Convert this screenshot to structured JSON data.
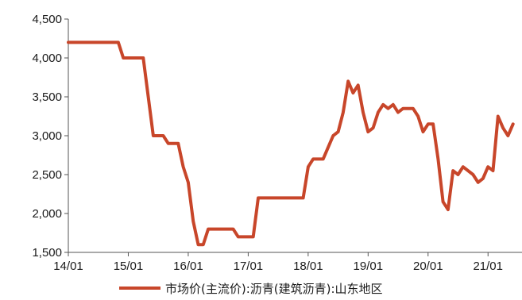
{
  "chart_data": {
    "type": "line",
    "title": "",
    "xlabel": "",
    "ylabel": "",
    "ylim": [
      1500,
      4500
    ],
    "y_ticks": [
      "1,500",
      "2,000",
      "2,500",
      "3,000",
      "3,500",
      "4,000",
      "4,500"
    ],
    "x_ticks": [
      "14/01",
      "15/01",
      "16/01",
      "17/01",
      "18/01",
      "19/01",
      "20/01",
      "21/01"
    ],
    "grid": false,
    "legend_position": "bottom",
    "series": [
      {
        "name": "市场价(主流价):沥青(建筑沥青):山东地区",
        "color": "#c8462a",
        "points": [
          [
            "2014-01",
            4200
          ],
          [
            "2014-11",
            4200
          ],
          [
            "2014-12",
            4000
          ],
          [
            "2015-04",
            4000
          ],
          [
            "2015-05",
            3500
          ],
          [
            "2015-06",
            3000
          ],
          [
            "2015-08",
            3000
          ],
          [
            "2015-09",
            2900
          ],
          [
            "2015-11",
            2900
          ],
          [
            "2015-12",
            2600
          ],
          [
            "2016-01",
            2400
          ],
          [
            "2016-02",
            1900
          ],
          [
            "2016-03",
            1600
          ],
          [
            "2016-04",
            1600
          ],
          [
            "2016-05",
            1800
          ],
          [
            "2016-10",
            1800
          ],
          [
            "2016-11",
            1700
          ],
          [
            "2017-02",
            1700
          ],
          [
            "2017-03",
            2200
          ],
          [
            "2017-12",
            2200
          ],
          [
            "2018-01",
            2600
          ],
          [
            "2018-02",
            2700
          ],
          [
            "2018-04",
            2700
          ],
          [
            "2018-05",
            2850
          ],
          [
            "2018-06",
            3000
          ],
          [
            "2018-07",
            3050
          ],
          [
            "2018-08",
            3300
          ],
          [
            "2018-09",
            3700
          ],
          [
            "2018-10",
            3550
          ],
          [
            "2018-11",
            3650
          ],
          [
            "2018-12",
            3300
          ],
          [
            "2019-01",
            3050
          ],
          [
            "2019-02",
            3100
          ],
          [
            "2019-03",
            3300
          ],
          [
            "2019-04",
            3400
          ],
          [
            "2019-05",
            3350
          ],
          [
            "2019-06",
            3400
          ],
          [
            "2019-07",
            3300
          ],
          [
            "2019-08",
            3350
          ],
          [
            "2019-10",
            3350
          ],
          [
            "2019-11",
            3250
          ],
          [
            "2019-12",
            3050
          ],
          [
            "2020-01",
            3150
          ],
          [
            "2020-02",
            3150
          ],
          [
            "2020-03",
            2700
          ],
          [
            "2020-04",
            2150
          ],
          [
            "2020-05",
            2050
          ],
          [
            "2020-06",
            2550
          ],
          [
            "2020-07",
            2500
          ],
          [
            "2020-08",
            2600
          ],
          [
            "2020-10",
            2500
          ],
          [
            "2020-11",
            2400
          ],
          [
            "2020-12",
            2450
          ],
          [
            "2021-01",
            2600
          ],
          [
            "2021-02",
            2550
          ],
          [
            "2021-03",
            3250
          ],
          [
            "2021-04",
            3100
          ],
          [
            "2021-05",
            3000
          ],
          [
            "2021-06",
            3150
          ]
        ]
      }
    ]
  }
}
